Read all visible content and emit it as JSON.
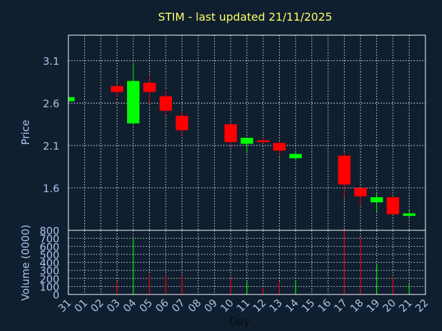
{
  "colors": {
    "background": "#0f1f30",
    "up": "#00ff00",
    "down": "#ff0000",
    "grid": "#ffffff",
    "text": "#a9c4e6",
    "title": "#ffff66"
  },
  "chart_data": {
    "type": "candlestick",
    "title": "STIM - last updated 21/11/2025",
    "xlabel": "Day",
    "ylabel": "Price",
    "volume_ylabel": "Volume (0000)",
    "x_ticks": [
      "31",
      "01",
      "02",
      "03",
      "04",
      "05",
      "06",
      "07",
      "08",
      "09",
      "10",
      "11",
      "12",
      "13",
      "14",
      "15",
      "16",
      "17",
      "18",
      "19",
      "20",
      "21",
      "22"
    ],
    "price_yticks": [
      "3.1",
      "2.6",
      "2.1",
      "1.6"
    ],
    "volume_yticks": [
      "800",
      "700",
      "600",
      "500",
      "400",
      "300",
      "200",
      "100",
      "0"
    ],
    "price_ylim": [
      1.1,
      3.4
    ],
    "volume_ylim": [
      0,
      800
    ],
    "grid": true,
    "candles": [
      {
        "day": "31",
        "open": 2.62,
        "close": 2.67,
        "high": 2.67,
        "low": 2.62,
        "volume": 0
      },
      {
        "day": "03",
        "open": 2.8,
        "close": 2.73,
        "high": 2.83,
        "low": 2.67,
        "volume": 160
      },
      {
        "day": "04",
        "open": 2.36,
        "close": 2.86,
        "high": 3.08,
        "low": 2.36,
        "volume": 700
      },
      {
        "day": "05",
        "open": 2.84,
        "close": 2.73,
        "high": 2.92,
        "low": 2.6,
        "volume": 250
      },
      {
        "day": "06",
        "open": 2.68,
        "close": 2.51,
        "high": 2.75,
        "low": 2.46,
        "volume": 240
      },
      {
        "day": "07",
        "open": 2.45,
        "close": 2.28,
        "high": 2.5,
        "low": 2.22,
        "volume": 240
      },
      {
        "day": "10",
        "open": 2.35,
        "close": 2.14,
        "high": 2.35,
        "low": 2.1,
        "volume": 200
      },
      {
        "day": "11",
        "open": 2.12,
        "close": 2.19,
        "high": 2.2,
        "low": 2.01,
        "volume": 160
      },
      {
        "day": "12",
        "open": 2.16,
        "close": 2.14,
        "high": 2.19,
        "low": 2.12,
        "volume": 90
      },
      {
        "day": "13",
        "open": 2.13,
        "close": 2.04,
        "high": 2.14,
        "low": 1.97,
        "volume": 160
      },
      {
        "day": "14",
        "open": 1.95,
        "close": 2.0,
        "high": 2.03,
        "low": 1.92,
        "volume": 180
      },
      {
        "day": "17",
        "open": 1.98,
        "close": 1.64,
        "high": 2.01,
        "low": 1.48,
        "volume": 800
      },
      {
        "day": "18",
        "open": 1.6,
        "close": 1.5,
        "high": 1.6,
        "low": 1.38,
        "volume": 700
      },
      {
        "day": "19",
        "open": 1.43,
        "close": 1.49,
        "high": 1.53,
        "low": 1.31,
        "volume": 380
      },
      {
        "day": "20",
        "open": 1.49,
        "close": 1.29,
        "high": 1.49,
        "low": 1.28,
        "volume": 220
      },
      {
        "day": "21",
        "open": 1.27,
        "close": 1.3,
        "high": 1.34,
        "low": 1.25,
        "volume": 150
      }
    ]
  }
}
